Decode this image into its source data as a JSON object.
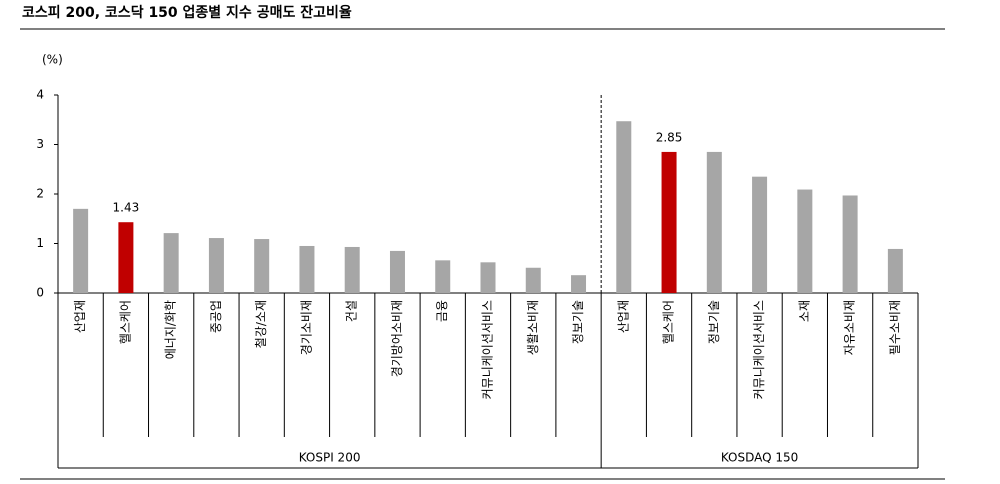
{
  "chart_data": {
    "type": "bar",
    "title": "코스피 200, 코스닥 150 업종별 지수 공매도 잔고비율",
    "y_unit": "(%)",
    "ylim": [
      0,
      4
    ],
    "yticks": [
      0,
      1,
      2,
      3,
      4
    ],
    "grid": false,
    "groups": [
      {
        "name": "KOSPI 200",
        "categories": [
          "산업재",
          "헬스케어",
          "에너지/화학",
          "중공업",
          "철강/소재",
          "경기소비재",
          "건설",
          "경기방어소비재",
          "금융",
          "커뮤니케이션서비스",
          "생활소비재",
          "정보기술"
        ],
        "values": [
          1.7,
          1.43,
          1.21,
          1.11,
          1.09,
          0.95,
          0.93,
          0.85,
          0.66,
          0.62,
          0.51,
          0.36
        ],
        "colors": [
          "#a6a6a6",
          "#c00000",
          "#a6a6a6",
          "#a6a6a6",
          "#a6a6a6",
          "#a6a6a6",
          "#a6a6a6",
          "#a6a6a6",
          "#a6a6a6",
          "#a6a6a6",
          "#a6a6a6",
          "#a6a6a6"
        ],
        "value_labels": [
          null,
          "1.43",
          null,
          null,
          null,
          null,
          null,
          null,
          null,
          null,
          null,
          null
        ]
      },
      {
        "name": "KOSDAQ 150",
        "categories": [
          "산업재",
          "헬스케어",
          "정보기술",
          "커뮤니케이션서비스",
          "소재",
          "자유소비재",
          "필수소비재"
        ],
        "values": [
          3.47,
          2.85,
          2.85,
          2.35,
          2.09,
          1.97,
          0.89
        ],
        "colors": [
          "#a6a6a6",
          "#c00000",
          "#a6a6a6",
          "#a6a6a6",
          "#a6a6a6",
          "#a6a6a6",
          "#a6a6a6"
        ],
        "value_labels": [
          null,
          "2.85",
          null,
          null,
          null,
          null,
          null
        ]
      }
    ]
  }
}
